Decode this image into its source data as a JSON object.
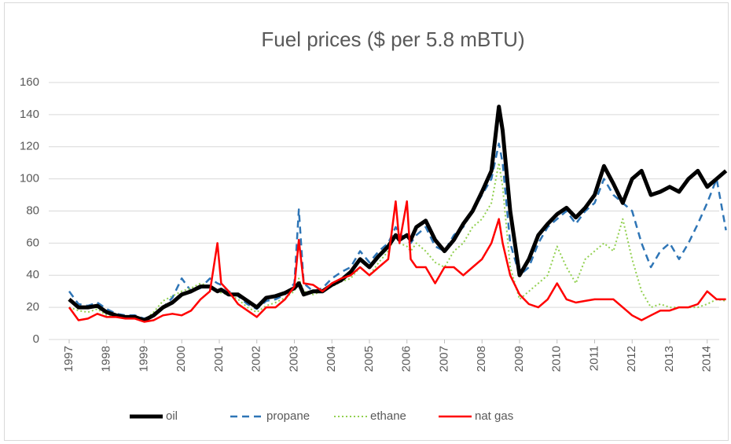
{
  "chart_data": {
    "type": "line",
    "title": "Fuel prices  ($ per 5.8 mBTU)",
    "x": [
      1997,
      1997.25,
      1997.5,
      1997.75,
      1998,
      1998.25,
      1998.5,
      1998.75,
      1999,
      1999.25,
      1999.5,
      1999.75,
      2000,
      2000.25,
      2000.5,
      2000.75,
      2000.95,
      2001.05,
      2001.25,
      2001.5,
      2001.75,
      2002,
      2002.25,
      2002.5,
      2002.75,
      2003,
      2003.12,
      2003.25,
      2003.5,
      2003.75,
      2004,
      2004.25,
      2004.5,
      2004.75,
      2005,
      2005.25,
      2005.5,
      2005.7,
      2005.8,
      2006,
      2006.1,
      2006.25,
      2006.5,
      2006.75,
      2007,
      2007.25,
      2007.5,
      2007.75,
      2008,
      2008.25,
      2008.45,
      2008.55,
      2008.75,
      2009,
      2009.25,
      2009.5,
      2009.75,
      2010,
      2010.25,
      2010.5,
      2010.75,
      2011,
      2011.25,
      2011.5,
      2011.75,
      2012,
      2012.25,
      2012.5,
      2012.75,
      2013,
      2013.25,
      2013.5,
      2013.75,
      2014,
      2014.25,
      2014.5
    ],
    "series": [
      {
        "name": "oil",
        "color": "#000000",
        "values": [
          25,
          20,
          20,
          21,
          17,
          15,
          14,
          14,
          12,
          15,
          20,
          23,
          28,
          30,
          33,
          33,
          30,
          31,
          28,
          28,
          24,
          20,
          26,
          27,
          29,
          32,
          35,
          28,
          30,
          30,
          34,
          37,
          42,
          50,
          45,
          52,
          58,
          65,
          62,
          65,
          62,
          70,
          74,
          62,
          55,
          62,
          72,
          80,
          92,
          105,
          145,
          130,
          80,
          40,
          50,
          65,
          72,
          78,
          82,
          76,
          82,
          90,
          108,
          97,
          85,
          100,
          105,
          90,
          92,
          95,
          92,
          100,
          105,
          95,
          100,
          105
        ]
      },
      {
        "name": "propane",
        "color": "#2e75b6",
        "values": [
          30,
          22,
          21,
          23,
          19,
          16,
          15,
          15,
          13,
          15,
          20,
          26,
          38,
          30,
          32,
          38,
          35,
          34,
          30,
          27,
          22,
          19,
          24,
          25,
          28,
          35,
          81,
          35,
          30,
          32,
          38,
          42,
          45,
          55,
          48,
          55,
          60,
          70,
          66,
          62,
          60,
          65,
          70,
          58,
          55,
          65,
          70,
          80,
          90,
          100,
          122,
          110,
          60,
          40,
          45,
          60,
          70,
          75,
          80,
          72,
          80,
          85,
          100,
          90,
          85,
          80,
          60,
          45,
          55,
          60,
          50,
          60,
          72,
          85,
          100,
          68
        ]
      },
      {
        "name": "ethane",
        "color": "#92d050",
        "values": [
          20,
          18,
          17,
          19,
          15,
          14,
          13,
          13,
          12,
          17,
          24,
          27,
          30,
          32,
          35,
          33,
          30,
          29,
          28,
          25,
          20,
          17,
          21,
          23,
          26,
          30,
          38,
          30,
          28,
          30,
          33,
          36,
          38,
          45,
          40,
          48,
          55,
          65,
          60,
          58,
          55,
          60,
          55,
          48,
          45,
          55,
          60,
          70,
          75,
          85,
          110,
          95,
          45,
          25,
          30,
          35,
          40,
          58,
          45,
          35,
          50,
          55,
          60,
          55,
          75,
          50,
          30,
          20,
          22,
          20,
          20,
          20,
          20,
          22,
          25,
          24
        ]
      },
      {
        "name": "nat gas",
        "color": "#ff0000",
        "values": [
          20,
          12,
          13,
          16,
          14,
          14,
          13,
          13,
          11,
          12,
          15,
          16,
          15,
          18,
          25,
          30,
          60,
          35,
          30,
          22,
          18,
          14,
          20,
          20,
          25,
          33,
          62,
          35,
          34,
          30,
          35,
          38,
          40,
          45,
          40,
          45,
          50,
          86,
          60,
          86,
          50,
          45,
          45,
          35,
          45,
          45,
          40,
          45,
          50,
          60,
          75,
          60,
          40,
          28,
          22,
          20,
          25,
          35,
          25,
          23,
          24,
          25,
          25,
          25,
          20,
          15,
          12,
          15,
          18,
          18,
          20,
          20,
          22,
          30,
          25,
          25
        ]
      }
    ],
    "xlim": [
      1997,
      2014.55
    ],
    "xticks": [
      1997,
      1998,
      1999,
      2000,
      2001,
      2002,
      2003,
      2004,
      2005,
      2006,
      2007,
      2008,
      2009,
      2010,
      2011,
      2012,
      2013,
      2014
    ],
    "ylim": [
      0,
      160
    ],
    "yticks": [
      0,
      20,
      40,
      60,
      80,
      100,
      120,
      140,
      160
    ],
    "grid": true,
    "legend": "bottom"
  }
}
